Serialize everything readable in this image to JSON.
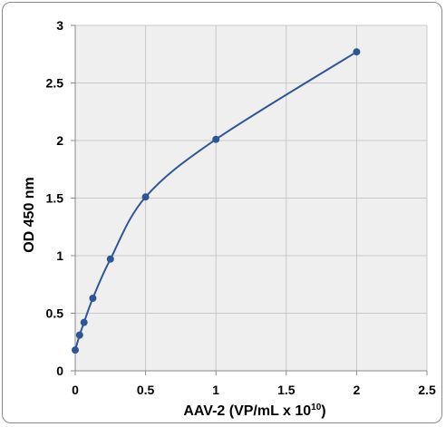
{
  "chart_data": {
    "type": "scatter",
    "xlabel": "AAV-2 (VP/mL x 10",
    "xlabel_superscript": "10",
    "xlabel_suffix": ")",
    "ylabel": "OD 450 nm",
    "xlim": [
      0,
      2.5
    ],
    "ylim": [
      0,
      3
    ],
    "x_ticks": [
      "0",
      "0.5",
      "1",
      "1.5",
      "2",
      "2.5"
    ],
    "y_ticks": [
      "0",
      "0.5",
      "1",
      "1.5",
      "2",
      "2.5",
      "3"
    ],
    "grid": true,
    "legend": "none",
    "series": [
      {
        "x": [
          0,
          0.031,
          0.0625,
          0.125,
          0.25,
          0.5,
          1,
          2
        ],
        "y": [
          0.18,
          0.31,
          0.42,
          0.63,
          0.97,
          1.51,
          2.01,
          2.77
        ],
        "style": "smoothed line with markers",
        "color": "#2f5597"
      }
    ],
    "colors": {
      "plot_area": "#efefef",
      "gridline": "#c8c8c8",
      "series": "#2f5597"
    }
  }
}
